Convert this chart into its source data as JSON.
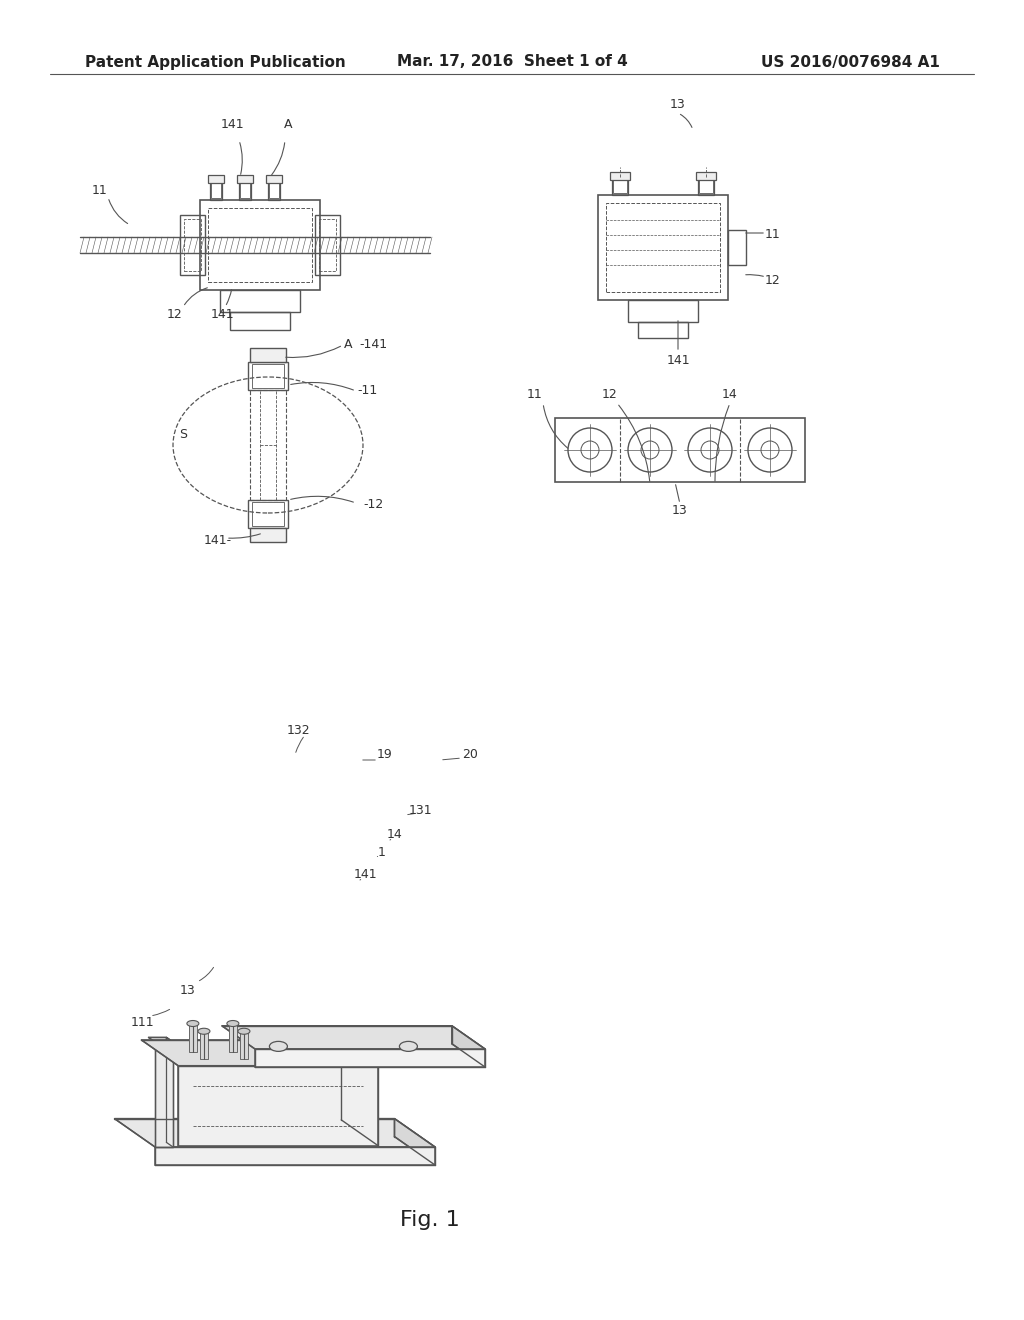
{
  "background_color": "#ffffff",
  "header_left": "Patent Application Publication",
  "header_center": "Mar. 17, 2016  Sheet 1 of 4",
  "header_right": "US 2016/0076984 A1",
  "fig_caption": "Fig. 1",
  "line_color": "#555555",
  "lw_main": 1.2,
  "lw_thin": 0.7,
  "lw_dashed": 0.7
}
